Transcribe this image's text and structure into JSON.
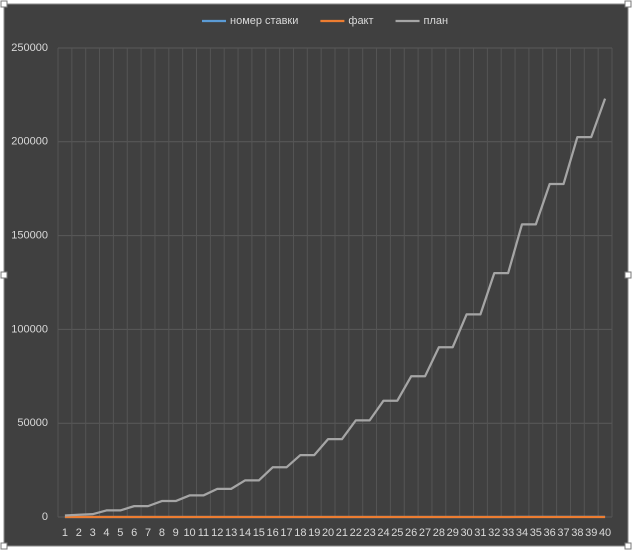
{
  "chart_data": {
    "type": "line",
    "categories": [
      "1",
      "2",
      "3",
      "4",
      "5",
      "6",
      "7",
      "8",
      "9",
      "10",
      "11",
      "12",
      "13",
      "14",
      "15",
      "16",
      "17",
      "18",
      "19",
      "20",
      "21",
      "22",
      "23",
      "24",
      "25",
      "26",
      "27",
      "28",
      "29",
      "30",
      "31",
      "32",
      "33",
      "34",
      "35",
      "36",
      "37",
      "38",
      "39",
      "40"
    ],
    "series": [
      {
        "name": "номер ставки",
        "color": "#5b9bd5",
        "values": [
          1,
          2,
          3,
          4,
          5,
          6,
          7,
          8,
          9,
          10,
          11,
          12,
          13,
          14,
          15,
          16,
          17,
          18,
          19,
          20,
          21,
          22,
          23,
          24,
          25,
          26,
          27,
          28,
          29,
          30,
          31,
          32,
          33,
          34,
          35,
          36,
          37,
          38,
          39,
          40
        ]
      },
      {
        "name": "факт",
        "color": "#ed7d31",
        "values": [
          0,
          0,
          0,
          0,
          0,
          0,
          0,
          0,
          0,
          0,
          0,
          0,
          0,
          0,
          0,
          0,
          0,
          0,
          0,
          0,
          0,
          0,
          0,
          0,
          0,
          0,
          0,
          0,
          0,
          0,
          0,
          0,
          0,
          0,
          0,
          0,
          0,
          0,
          0,
          0
        ]
      },
      {
        "name": "план",
        "color": "#a5a5a5",
        "values": [
          800,
          1200,
          1500,
          3500,
          3500,
          5800,
          5800,
          8500,
          8500,
          11500,
          11500,
          15000,
          15000,
          19500,
          19500,
          26500,
          26500,
          33000,
          33000,
          41500,
          41500,
          51500,
          51500,
          62000,
          62000,
          75000,
          75000,
          90500,
          90500,
          108000,
          108000,
          130000,
          130000,
          156000,
          156000,
          177500,
          177500,
          202500,
          202500,
          223000
        ]
      }
    ],
    "ylim": [
      0,
      250000
    ],
    "yticks": [
      0,
      50000,
      100000,
      150000,
      200000,
      250000
    ],
    "grid": true,
    "legend": "top"
  }
}
